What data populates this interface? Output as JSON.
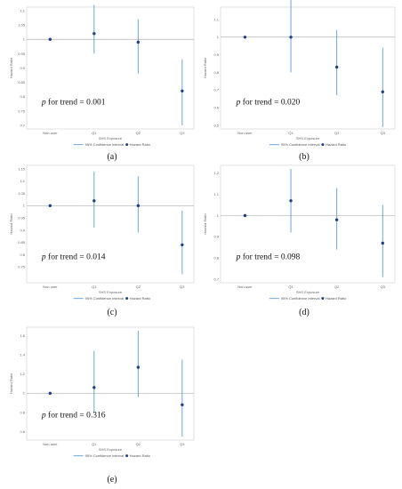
{
  "figure": {
    "captions": [
      "(a)",
      "(b)",
      "(c)",
      "(d)",
      "(e)"
    ]
  },
  "colors": {
    "ci_line": "#5b9bd5",
    "point": "#1f3f87",
    "reference_line": "#b0b0b0",
    "frame": "#cfcfcf"
  },
  "chart_data": [
    {
      "type": "scatter",
      "caption": "(a)",
      "categories": [
        "Non-user",
        "Q1",
        "Q2",
        "Q3"
      ],
      "hazard_ratio": [
        1.0,
        1.02,
        0.99,
        0.82
      ],
      "ci_lower": [
        1.0,
        0.95,
        0.88,
        0.7
      ],
      "ci_upper": [
        1.0,
        1.12,
        1.07,
        0.93
      ],
      "ylim": [
        0.7,
        1.1
      ],
      "yticks": [
        0.7,
        0.75,
        0.8,
        0.85,
        0.9,
        0.95,
        1,
        1.05,
        1.1
      ],
      "reference_line": 1,
      "xlabel": "SHS Exposure",
      "ylabel": "Hazard Ratio",
      "annotation": {
        "p_symbol": "p",
        "text": " for trend = 0.001"
      },
      "legend": {
        "placement": "bottom",
        "ci_label": "95% Confidence Interval",
        "point_label": "Hazard Ratio"
      }
    },
    {
      "type": "scatter",
      "caption": "(b)",
      "categories": [
        "Non-user",
        "Q1",
        "Q2",
        "Q3"
      ],
      "hazard_ratio": [
        1.0,
        1.0,
        0.83,
        0.69
      ],
      "ci_lower": [
        1.0,
        0.8,
        0.67,
        0.49
      ],
      "ci_upper": [
        1.0,
        1.23,
        1.04,
        0.94
      ],
      "ylim": [
        0.5,
        1.15
      ],
      "yticks": [
        0.5,
        0.6,
        0.7,
        0.8,
        0.9,
        1,
        1.1
      ],
      "reference_line": 1,
      "xlabel": "SHS Exposure",
      "ylabel": "Hazard Ratio",
      "annotation": {
        "p_symbol": "p",
        "text": " for trend = 0.020"
      },
      "legend": {
        "placement": "bottom",
        "ci_label": "95% Confidence Interval",
        "point_label": "Hazard Ratio"
      }
    },
    {
      "type": "scatter",
      "caption": "(c)",
      "categories": [
        "Non-user",
        "Q1",
        "Q2",
        "Q3"
      ],
      "hazard_ratio": [
        1.0,
        1.02,
        1.0,
        0.84
      ],
      "ci_lower": [
        1.0,
        0.91,
        0.89,
        0.72
      ],
      "ci_upper": [
        1.0,
        1.14,
        1.12,
        0.98
      ],
      "ylim": [
        0.7,
        1.15
      ],
      "yticks": [
        0.75,
        0.8,
        0.85,
        0.9,
        0.95,
        1,
        1.05,
        1.1,
        1.15
      ],
      "reference_line": 1,
      "xlabel": "SHS Exposure",
      "ylabel": "Hazard Ratio",
      "annotation": {
        "p_symbol": "p",
        "text": " for trend = 0.014"
      },
      "legend": {
        "placement": "bottom",
        "ci_label": "95% Confidence Interval",
        "point_label": "Hazard Ratio"
      }
    },
    {
      "type": "scatter",
      "caption": "(d)",
      "categories": [
        "Non-user",
        "Q1",
        "Q2",
        "Q3"
      ],
      "hazard_ratio": [
        1.0,
        1.07,
        0.98,
        0.87
      ],
      "ci_lower": [
        1.0,
        0.92,
        0.84,
        0.71
      ],
      "ci_upper": [
        1.0,
        1.22,
        1.13,
        1.05
      ],
      "ylim": [
        0.7,
        1.22
      ],
      "yticks": [
        0.7,
        0.8,
        0.9,
        1,
        1.1,
        1.2
      ],
      "reference_line": 1,
      "xlabel": "SHS Exposure",
      "ylabel": "Hazard Ratio",
      "annotation": {
        "p_symbol": "p",
        "text": " for trend = 0.098"
      },
      "legend": {
        "placement": "bottom",
        "ci_label": "95% Confidence Interval",
        "point_label": "Hazard Ratio"
      }
    },
    {
      "type": "scatter",
      "caption": "(e)",
      "categories": [
        "Non-user",
        "Q1",
        "Q2",
        "Q3"
      ],
      "hazard_ratio": [
        1.0,
        1.06,
        1.27,
        0.88
      ],
      "ci_lower": [
        1.0,
        0.79,
        0.96,
        0.55
      ],
      "ci_upper": [
        1.0,
        1.44,
        1.65,
        1.35
      ],
      "ylim": [
        0.55,
        1.65
      ],
      "yticks": [
        0.6,
        0.8,
        1,
        1.2,
        1.4,
        1.6
      ],
      "reference_line": 1,
      "xlabel": "SHS Exposure",
      "ylabel": "Hazard Ratio",
      "annotation": {
        "p_symbol": "p",
        "text": " for trend = 0.316"
      },
      "legend": {
        "placement": "bottom",
        "ci_label": "95% Confidence Interval",
        "point_label": "Hazard Ratio"
      }
    }
  ]
}
